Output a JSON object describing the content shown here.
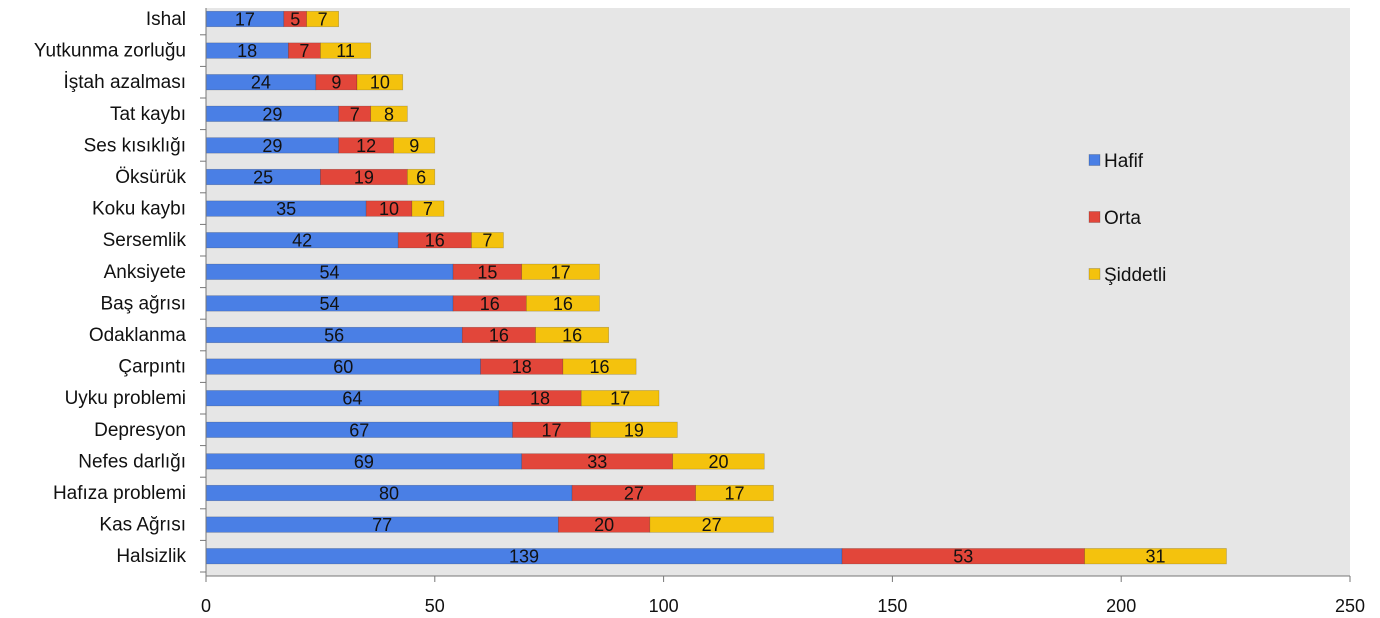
{
  "chart_data": {
    "type": "bar",
    "orientation": "horizontal",
    "stacked": true,
    "categories": [
      "Ishal",
      "Yutkunma zorluğu",
      "İştah azalması",
      "Tat kaybı",
      "Ses kısıklığı",
      "Öksürük",
      "Koku kaybı",
      "Sersemlik",
      "Anksiyete",
      "Baş ağrısı",
      "Odaklanma",
      "Çarpıntı",
      "Uyku problemi",
      "Depresyon",
      "Nefes darlığı",
      "Hafıza problemi",
      "Kas Ağrısı",
      "Halsizlik"
    ],
    "series": [
      {
        "name": "Hafif",
        "color": "#4a7fe5",
        "values": [
          17,
          18,
          24,
          29,
          29,
          25,
          35,
          42,
          54,
          54,
          56,
          60,
          64,
          67,
          69,
          80,
          77,
          139
        ]
      },
      {
        "name": "Orta",
        "color": "#e2463a",
        "values": [
          5,
          7,
          9,
          7,
          12,
          19,
          10,
          16,
          15,
          16,
          16,
          18,
          18,
          17,
          33,
          27,
          20,
          53
        ]
      },
      {
        "name": "Şiddetli",
        "color": "#f4c20d",
        "values": [
          7,
          11,
          10,
          8,
          9,
          6,
          7,
          7,
          17,
          16,
          16,
          16,
          17,
          19,
          20,
          17,
          27,
          31
        ]
      }
    ],
    "xlim": [
      0,
      250
    ],
    "xticks": [
      0,
      50,
      100,
      150,
      200,
      250
    ],
    "legend_position": "right",
    "plot_background": "#e6e6e6",
    "grid": false
  }
}
